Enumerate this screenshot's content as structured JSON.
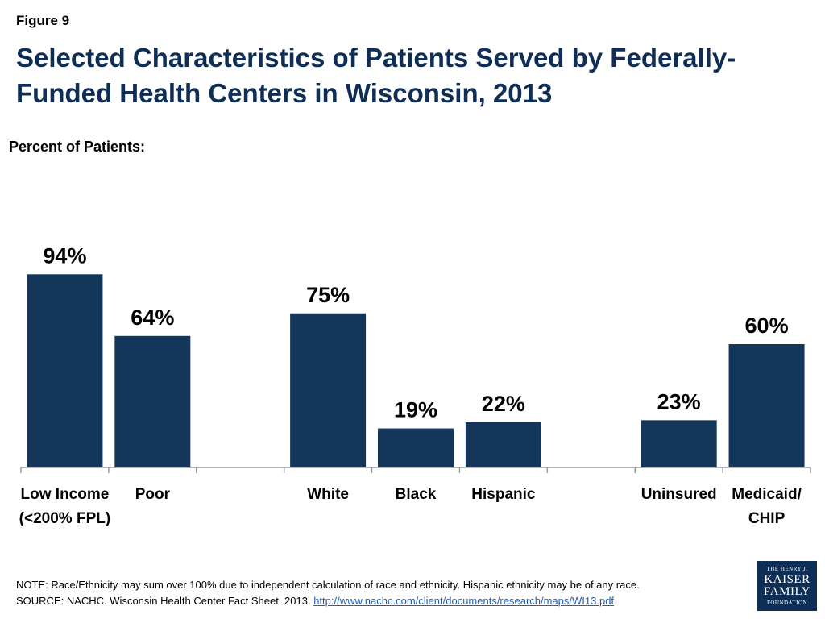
{
  "figure_label": "Figure 9",
  "title": "Selected Characteristics of Patients Served by Federally-Funded Health Centers in Wisconsin, 2013",
  "note": "NOTE: Race/Ethnicity may sum over 100% due to independent calculation of race and ethnicity. Hispanic ethnicity may be of any race.",
  "source_prefix": "SOURCE: NACHC. Wisconsin Health Center Fact Sheet. 2013.",
  "source_link": "http://www.nachc.com/client/documents/research/maps/WI13.pdf",
  "logo": {
    "line1": "THE HENRY J.",
    "line2": "KAISER",
    "line3": "FAMILY",
    "line4": "FOUNDATION"
  },
  "colors": {
    "bar": "#15365b",
    "axis": "#9a9a9a",
    "title": "#0f2e55"
  },
  "chart_data": {
    "type": "bar",
    "ylabel": "Percent of Patients:",
    "ylim": [
      0,
      100
    ],
    "grid": false,
    "categories": [
      {
        "label_lines": [
          "Low Income",
          "(<200% FPL)"
        ],
        "value": 94,
        "data_label": "94%"
      },
      {
        "label_lines": [
          "Poor"
        ],
        "value": 64,
        "data_label": "64%"
      },
      {
        "label_lines": [],
        "value": null,
        "data_label": ""
      },
      {
        "label_lines": [
          "White"
        ],
        "value": 75,
        "data_label": "75%"
      },
      {
        "label_lines": [
          "Black"
        ],
        "value": 19,
        "data_label": "19%"
      },
      {
        "label_lines": [
          "Hispanic"
        ],
        "value": 22,
        "data_label": "22%"
      },
      {
        "label_lines": [],
        "value": null,
        "data_label": ""
      },
      {
        "label_lines": [
          "Uninsured"
        ],
        "value": 23,
        "data_label": "23%"
      },
      {
        "label_lines": [
          "Medicaid/",
          "CHIP"
        ],
        "value": 60,
        "data_label": "60%"
      }
    ]
  }
}
